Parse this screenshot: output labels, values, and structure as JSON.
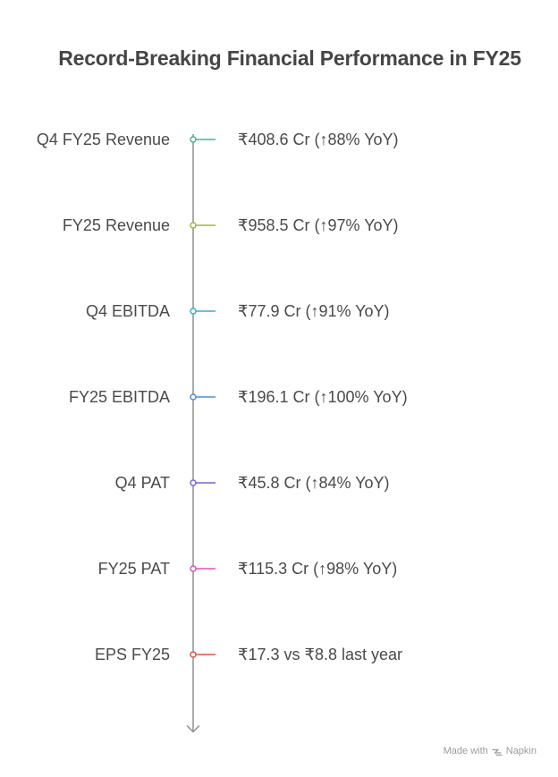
{
  "title": "Record-Breaking Financial Performance in FY25",
  "milestones": [
    {
      "label": "Q4 FY25 Revenue",
      "value": "₹408.6 Cr (↑88% YoY)",
      "color": "#3cb98f"
    },
    {
      "label": "FY25 Revenue",
      "value": "₹958.5 Cr (↑97% YoY)",
      "color": "#97b73d"
    },
    {
      "label": "Q4 EBITDA",
      "value": "₹77.9 Cr (↑91% YoY)",
      "color": "#31b0cf"
    },
    {
      "label": "FY25 EBITDA",
      "value": "₹196.1 Cr (↑100% YoY)",
      "color": "#4a8fd6"
    },
    {
      "label": "Q4 PAT",
      "value": "₹45.8 Cr (↑84% YoY)",
      "color": "#7467d4"
    },
    {
      "label": "FY25 PAT",
      "value": "₹115.3 Cr (↑98% YoY)",
      "color": "#d656b8"
    },
    {
      "label": "EPS FY25",
      "value": "₹17.3 vs ₹8.8 last year",
      "color": "#df524a"
    }
  ],
  "footer": {
    "made_with": "Made with",
    "brand": "Napkin",
    "icon": "napkin-logo-icon"
  }
}
